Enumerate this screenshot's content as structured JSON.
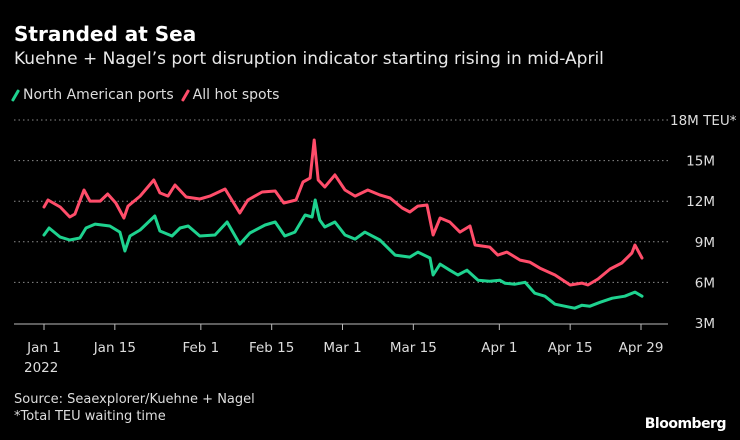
{
  "chart_data": {
    "type": "line",
    "title": "Stranded at Sea",
    "subtitle": "Kuehne + Nagel’s port disruption indicator starting rising in mid-April",
    "ylabel": "TEU*",
    "ylim": [
      3,
      18
    ],
    "y_ticks": [
      {
        "value": 18,
        "label": "18M TEU*"
      },
      {
        "value": 15,
        "label": "15M"
      },
      {
        "value": 12,
        "label": "12M"
      },
      {
        "value": 9,
        "label": "9M"
      },
      {
        "value": 6,
        "label": "6M"
      },
      {
        "value": 3,
        "label": "3M"
      }
    ],
    "x_unit": "days since Jan 1 2022",
    "xlim": [
      0,
      118
    ],
    "x_ticks": [
      {
        "value": 0,
        "label": "Jan 1",
        "sublabel": "2022"
      },
      {
        "value": 14,
        "label": "Jan 15"
      },
      {
        "value": 31,
        "label": "Feb 1"
      },
      {
        "value": 45,
        "label": "Feb 15"
      },
      {
        "value": 59,
        "label": "Mar 1"
      },
      {
        "value": 73,
        "label": "Mar 15"
      },
      {
        "value": 90,
        "label": "Apr 1"
      },
      {
        "value": 104,
        "label": "Apr 15"
      },
      {
        "value": 118,
        "label": "Apr 29"
      }
    ],
    "grid": true,
    "legend_position": "top-left",
    "series": [
      {
        "name": "North American ports",
        "color": "#1ed28f",
        "x": [
          0,
          1,
          3.2,
          5.1,
          7.1,
          8.3,
          10.1,
          13,
          15,
          16,
          17,
          19,
          21.9,
          22.9,
          25.3,
          26.9,
          28.5,
          30.8,
          33.8,
          36.2,
          38.7,
          40.7,
          43.7,
          45.7,
          47.6,
          49.6,
          51.6,
          53,
          53.6,
          54.5,
          55.5,
          57.5,
          59.5,
          61.5,
          63.4,
          66.4,
          69.4,
          72.3,
          73.9,
          76.3,
          76.9,
          78.3,
          80.2,
          81.8,
          83.6,
          85.8,
          88.1,
          90.1,
          91.1,
          93.1,
          95.1,
          97,
          99,
          101,
          104,
          104.9,
          106.3,
          107.9,
          109.9,
          112.3,
          114.8,
          116.8,
          118.2
        ],
        "values": [
          9.5,
          10.02,
          9.35,
          9.13,
          9.28,
          10.02,
          10.31,
          10.17,
          9.72,
          8.32,
          9.43,
          9.87,
          10.91,
          9.8,
          9.43,
          10.02,
          10.17,
          9.43,
          9.5,
          10.46,
          8.83,
          9.65,
          10.24,
          10.46,
          9.43,
          9.72,
          10.98,
          10.83,
          12.09,
          10.61,
          10.09,
          10.46,
          9.5,
          9.2,
          9.72,
          9.13,
          8.02,
          7.87,
          8.24,
          7.8,
          6.55,
          7.35,
          6.9,
          6.55,
          6.9,
          6.16,
          6.09,
          6.16,
          5.94,
          5.87,
          6.01,
          5.2,
          4.98,
          4.39,
          4.16,
          4.09,
          4.31,
          4.24,
          4.53,
          4.83,
          4.98,
          5.28,
          4.98
        ]
      },
      {
        "name": "All hot spots",
        "color": "#ff4d6a",
        "x": [
          0,
          0.8,
          3.2,
          5.1,
          6.1,
          7.9,
          9.1,
          11.1,
          12.6,
          14.2,
          15.8,
          16.6,
          19,
          21.7,
          22.9,
          24.5,
          25.9,
          28.1,
          30.8,
          32.8,
          35.8,
          38.7,
          40.3,
          43.1,
          45.7,
          47.4,
          49.8,
          51.2,
          52.6,
          53.4,
          54.2,
          55.5,
          57.5,
          59.5,
          61.5,
          64,
          66.4,
          68.4,
          70.8,
          72.3,
          73.9,
          75.7,
          76.9,
          78.3,
          80.2,
          82.2,
          84.2,
          85.2,
          88.1,
          89.7,
          91.5,
          94.1,
          96,
          98,
          101,
          104,
          106.3,
          107.5,
          109.5,
          111.9,
          114.2,
          116.2,
          116.8,
          118.2
        ],
        "values": [
          11.57,
          12.09,
          11.57,
          10.83,
          11.05,
          12.83,
          12.01,
          12.01,
          12.53,
          11.87,
          10.76,
          11.64,
          12.38,
          13.57,
          12.61,
          12.38,
          13.2,
          12.31,
          12.16,
          12.38,
          12.9,
          11.13,
          12.09,
          12.68,
          12.75,
          11.87,
          12.09,
          13.42,
          13.71,
          16.52,
          13.57,
          13.05,
          13.94,
          12.83,
          12.38,
          12.83,
          12.46,
          12.24,
          11.5,
          11.2,
          11.64,
          11.72,
          9.5,
          10.76,
          10.46,
          9.72,
          10.17,
          8.76,
          8.61,
          8.02,
          8.24,
          7.65,
          7.5,
          7.06,
          6.55,
          5.81,
          5.95,
          5.81,
          6.25,
          6.99,
          7.43,
          8.17,
          8.76,
          7.8
        ]
      }
    ]
  },
  "footer": {
    "source": "Source: Seaexplorer/Kuehne + Nagel",
    "footnote": "*Total TEU waiting time",
    "brand": "Bloomberg"
  }
}
